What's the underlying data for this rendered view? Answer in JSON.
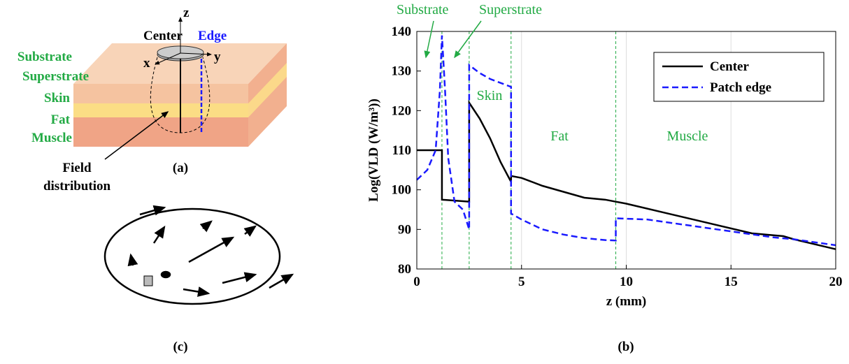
{
  "panel_a": {
    "axes": {
      "z": "z",
      "y": "y",
      "x": "x"
    },
    "center": "Center",
    "edge": "Edge",
    "layers": [
      "Substrate",
      "Superstrate",
      "Skin",
      "Fat",
      "Muscle"
    ],
    "field": [
      "Field",
      "distribution"
    ],
    "label": "(a)"
  },
  "panel_c": {
    "label": "(c)"
  },
  "chart_data": {
    "type": "line",
    "panel_label": "(b)",
    "xlabel": "z (mm)",
    "ylabel": "Log(VLD (W/m³))",
    "xlim": [
      0,
      20
    ],
    "xticks": [
      0,
      5,
      10,
      15,
      20
    ],
    "ylim": [
      80,
      140
    ],
    "yticks": [
      80,
      90,
      100,
      110,
      120,
      130,
      140
    ],
    "grid": "x",
    "legend": "upper right",
    "boundaries": [
      1.2,
      2.5,
      4.5,
      9.5
    ],
    "boundary_color": "#22aa44",
    "annotations": [
      "Substrate",
      "Superstrate",
      "Skin",
      "Fat",
      "Muscle"
    ],
    "series": [
      {
        "name": "Center",
        "color": "#000000",
        "dash": false,
        "x": [
          0,
          1.2,
          1.2,
          2.5,
          2.5,
          3,
          3.5,
          4,
          4.5,
          4.5,
          5,
          6,
          7,
          8,
          9,
          9.5,
          10,
          12,
          14,
          16,
          17.5,
          18,
          20
        ],
        "values": [
          110,
          110,
          97.5,
          97,
          122,
          118,
          113,
          107,
          102,
          103.5,
          103,
          101,
          99.5,
          98,
          97.5,
          97,
          96.5,
          94,
          91.5,
          89,
          88.3,
          87.5,
          85
        ]
      },
      {
        "name": "Patch edge",
        "color": "#1a1aff",
        "dash": true,
        "x": [
          0,
          0.5,
          0.9,
          1.1,
          1.2,
          1.35,
          1.5,
          1.8,
          2.2,
          2.5,
          2.5,
          3,
          3.5,
          4,
          4.5,
          4.5,
          5,
          6,
          7,
          8,
          9,
          9.5,
          9.5,
          11,
          13,
          15,
          17,
          18,
          20
        ],
        "values": [
          102.5,
          105,
          110,
          125,
          139,
          125,
          108,
          97,
          95,
          90,
          131.5,
          129.5,
          128,
          127,
          126,
          94,
          92.5,
          90,
          88.7,
          87.8,
          87.3,
          87.2,
          92.8,
          92.5,
          91,
          89.5,
          88,
          87.5,
          86
        ]
      }
    ]
  }
}
